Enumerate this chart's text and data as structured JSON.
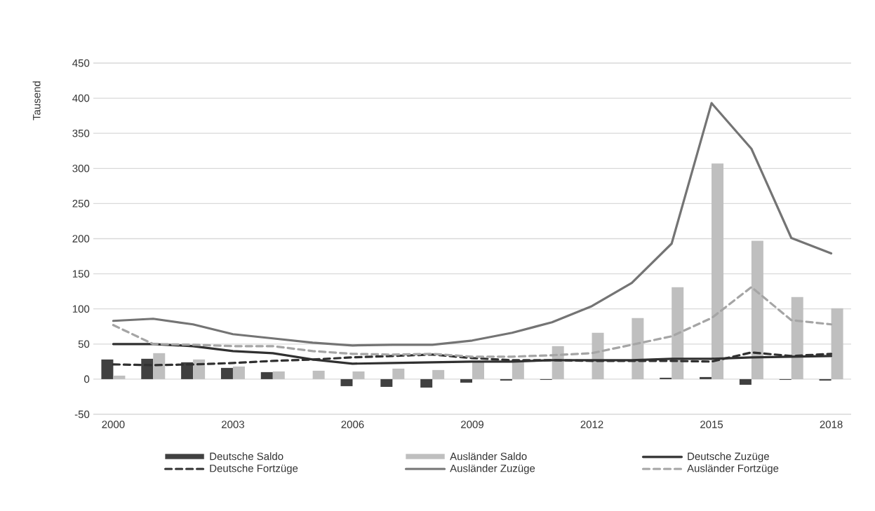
{
  "chart_data": {
    "type": "bar",
    "ylabel": "Tausend",
    "categories": [
      "2000",
      null,
      null,
      "2003",
      null,
      null,
      "2006",
      null,
      null,
      "2009",
      null,
      null,
      "2012",
      null,
      null,
      "2015",
      null,
      null,
      "2018"
    ],
    "series": [
      {
        "name": "Deutsche Saldo",
        "color": "#404040",
        "values": [
          28,
          29,
          24,
          16,
          10,
          0,
          -10,
          -11,
          -12,
          -5,
          -2,
          -1,
          0,
          0,
          2,
          3,
          -8,
          -1,
          -2
        ]
      },
      {
        "name": "Ausländer Saldo",
        "color": "#bfbfbf",
        "values": [
          5,
          37,
          28,
          18,
          11,
          12,
          11,
          15,
          13,
          24,
          26,
          47,
          66,
          87,
          131,
          307,
          197,
          117,
          101
        ]
      },
      {
        "name": "Deutsche Zuzüge",
        "type": "line",
        "line_style": "solid",
        "color": "#303030",
        "values": [
          50,
          50,
          47,
          40,
          37,
          28,
          22,
          23,
          24,
          25,
          25,
          27,
          27,
          27,
          29,
          29,
          31,
          32,
          33
        ]
      },
      {
        "name": "Deutsche Fortzüge",
        "type": "line",
        "line_style": "dashed",
        "color": "#303030",
        "values": [
          21,
          20,
          21,
          23,
          26,
          28,
          31,
          33,
          35,
          30,
          27,
          27,
          26,
          26,
          26,
          25,
          38,
          33,
          36
        ]
      },
      {
        "name": "Ausländer Zuzüge",
        "type": "line",
        "line_style": "solid",
        "color": "#747474",
        "values": [
          83,
          86,
          78,
          64,
          58,
          52,
          48,
          49,
          49,
          55,
          66,
          81,
          104,
          137,
          193,
          393,
          328,
          201,
          179
        ]
      },
      {
        "name": "Ausländer Fortzüge",
        "type": "line",
        "line_style": "dashed",
        "color": "#a5a5a5",
        "values": [
          77,
          50,
          49,
          47,
          47,
          40,
          36,
          35,
          36,
          32,
          32,
          34,
          37,
          49,
          61,
          87,
          131,
          84,
          78
        ]
      }
    ],
    "ylim": [
      -50,
      450
    ],
    "yticks": [
      -50,
      0,
      50,
      100,
      150,
      200,
      250,
      300,
      350,
      400,
      450
    ],
    "grid": "y",
    "legend": "bottom"
  }
}
